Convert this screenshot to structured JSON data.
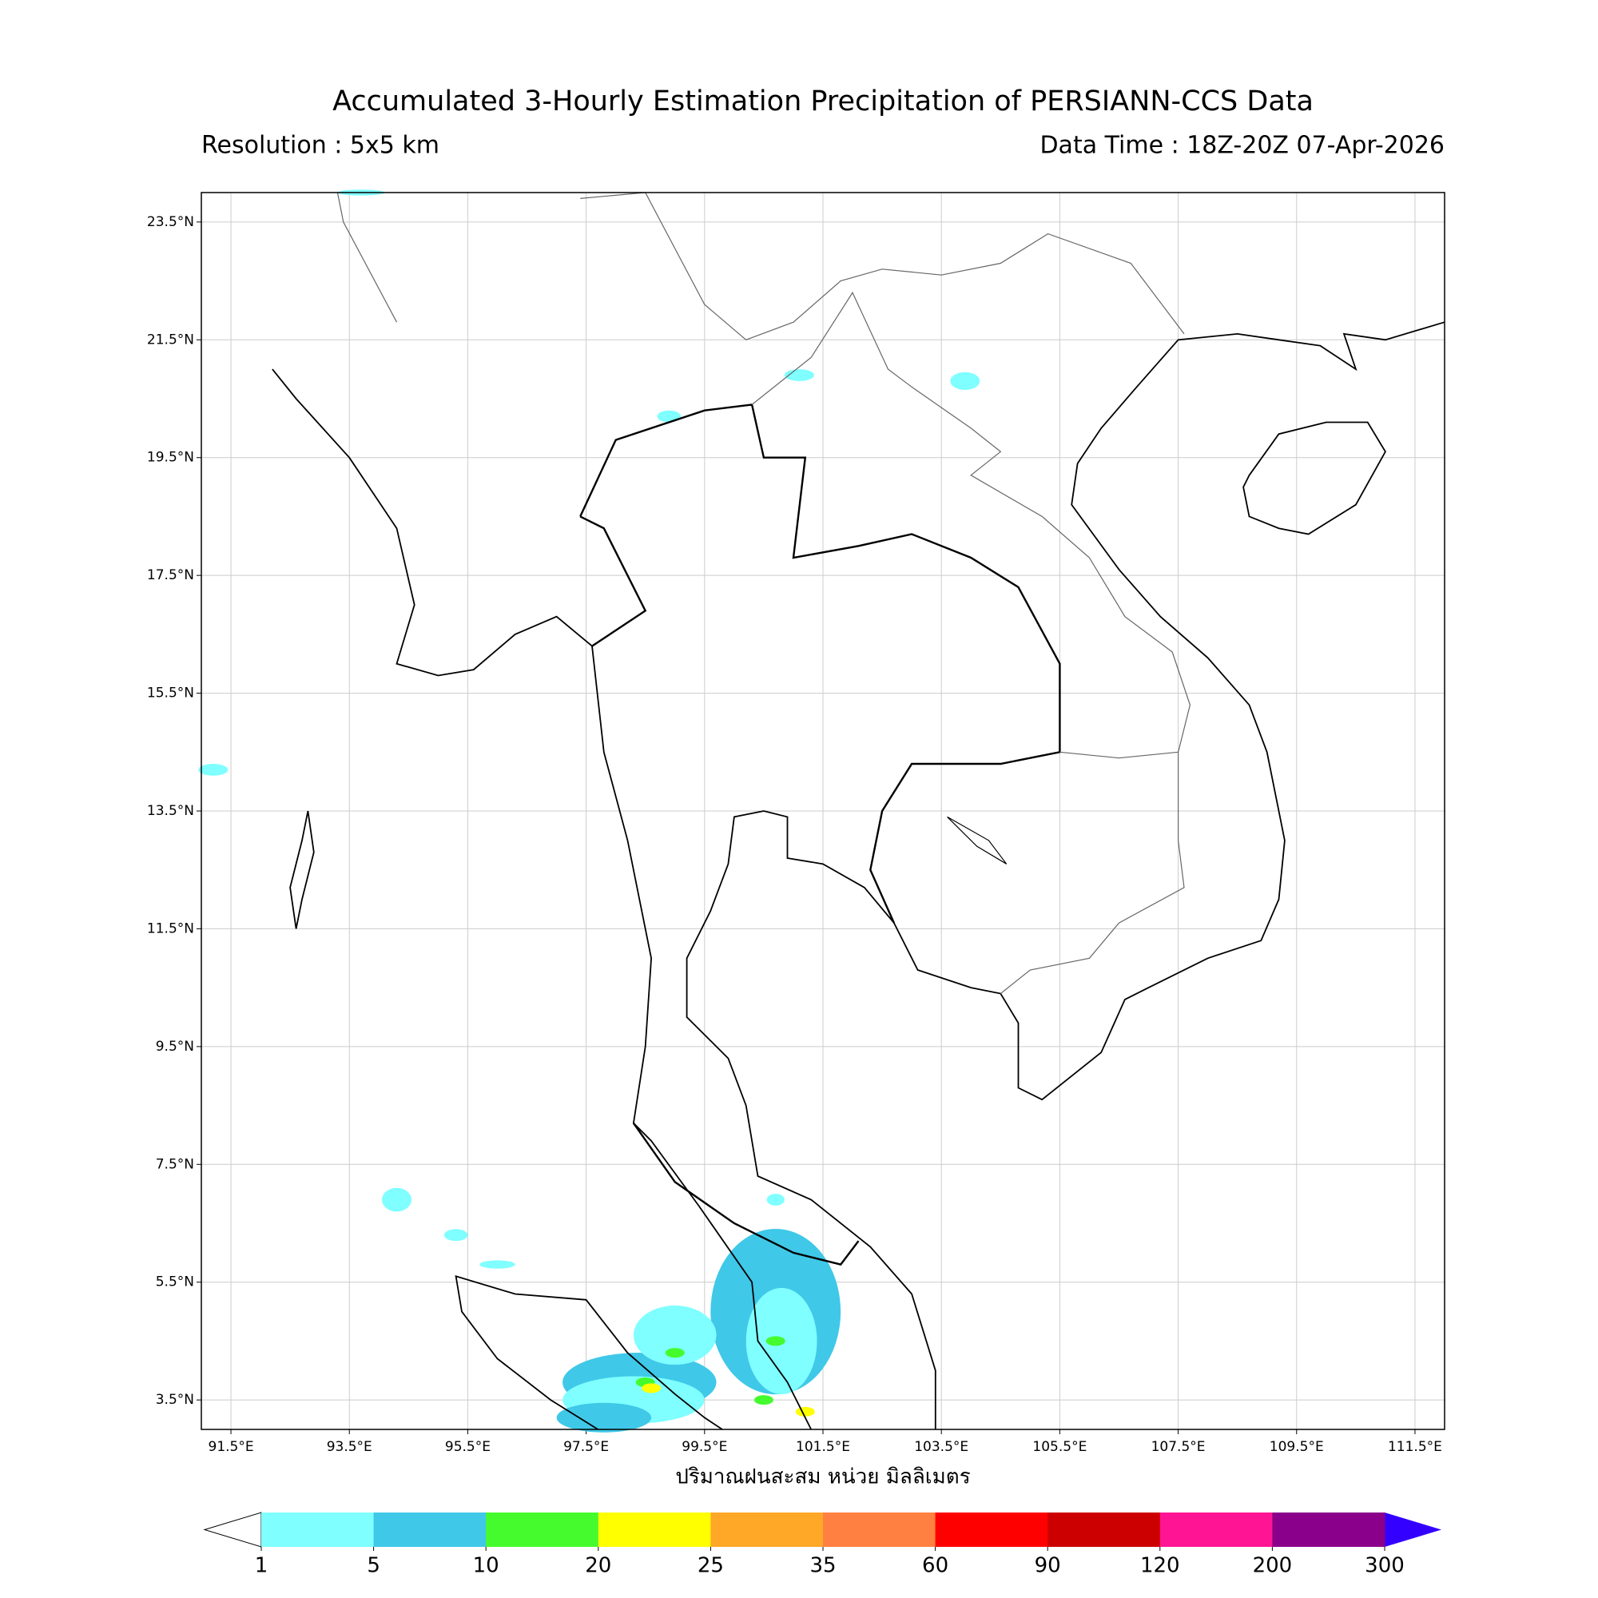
{
  "header": {
    "title": "Accumulated 3-Hourly Estimation Precipitation of PERSIANN-CCS Data",
    "resolution": "Resolution : 5x5 km",
    "data_time": "Data Time : 18Z-20Z 07-Apr-2026"
  },
  "map": {
    "lonlim": [
      91,
      112
    ],
    "latlim": [
      3,
      24
    ],
    "grid": true,
    "lon_ticks": [
      {
        "value": 91.5,
        "label": "91.5°E"
      },
      {
        "value": 93.5,
        "label": "93.5°E"
      },
      {
        "value": 95.5,
        "label": "95.5°E"
      },
      {
        "value": 97.5,
        "label": "97.5°E"
      },
      {
        "value": 99.5,
        "label": "99.5°E"
      },
      {
        "value": 101.5,
        "label": "101.5°E"
      },
      {
        "value": 103.5,
        "label": "103.5°E"
      },
      {
        "value": 105.5,
        "label": "105.5°E"
      },
      {
        "value": 107.5,
        "label": "107.5°E"
      },
      {
        "value": 109.5,
        "label": "109.5°E"
      },
      {
        "value": 111.5,
        "label": "111.5°E"
      }
    ],
    "lat_ticks": [
      {
        "value": 23.5,
        "label": "23.5°N"
      },
      {
        "value": 21.5,
        "label": "21.5°N"
      },
      {
        "value": 19.5,
        "label": "19.5°N"
      },
      {
        "value": 17.5,
        "label": "17.5°N"
      },
      {
        "value": 15.5,
        "label": "15.5°N"
      },
      {
        "value": 13.5,
        "label": "13.5°N"
      },
      {
        "value": 11.5,
        "label": "11.5°N"
      },
      {
        "value": 9.5,
        "label": "9.5°N"
      },
      {
        "value": 7.5,
        "label": "7.5°N"
      },
      {
        "value": 5.5,
        "label": "5.5°N"
      },
      {
        "value": 3.5,
        "label": "3.5°N"
      }
    ],
    "xlabel": "ปริมาณฝนสะสม หน่วย มิลลิเมตร"
  },
  "colorbar": {
    "levels": [
      1,
      5,
      10,
      20,
      25,
      35,
      60,
      90,
      120,
      200,
      300
    ],
    "colors": [
      "#7fffff",
      "#3fc8e8",
      "#45fb2e",
      "#ffff00",
      "#ffa726",
      "#ff8040",
      "#ff0000",
      "#cc0000",
      "#ff1493",
      "#8b008b"
    ],
    "under_color": "#ffffff",
    "over_color": "#3300ff"
  }
}
